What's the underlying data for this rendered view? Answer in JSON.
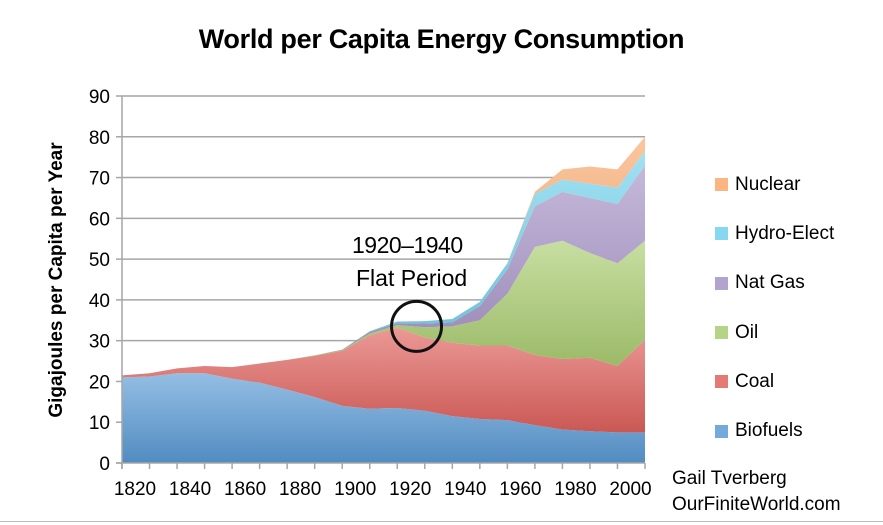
{
  "chart_data": {
    "type": "area",
    "stacked": true,
    "title": "World per Capita Energy Consumption",
    "xlabel": "",
    "ylabel": "Gigajoules per Capita per Year",
    "ylim": [
      0,
      90
    ],
    "xlim": [
      1820,
      2010
    ],
    "yticks": [
      0,
      10,
      20,
      30,
      40,
      50,
      60,
      70,
      80,
      90
    ],
    "xtick_labels": [
      "1820",
      "1840",
      "1860",
      "1880",
      "1900",
      "1920",
      "1940",
      "1960",
      "1980",
      "2000"
    ],
    "grid": "horizontal",
    "legend_position": "right",
    "x": [
      1820,
      1830,
      1840,
      1850,
      1860,
      1870,
      1880,
      1890,
      1900,
      1910,
      1920,
      1930,
      1940,
      1950,
      1960,
      1970,
      1980,
      1990,
      2000,
      2010
    ],
    "series": [
      {
        "name": "Biofuels",
        "color": "#5b9bd5",
        "values": [
          21.0,
          21.2,
          22.0,
          22.0,
          20.7,
          19.7,
          18.0,
          16.2,
          14.0,
          13.3,
          13.5,
          12.8,
          11.5,
          10.8,
          10.5,
          9.3,
          8.2,
          7.8,
          7.5,
          7.5
        ]
      },
      {
        "name": "Coal",
        "color": "#e0625d",
        "values": [
          0.5,
          0.8,
          1.2,
          1.8,
          2.8,
          4.7,
          7.3,
          10.1,
          13.5,
          18.0,
          19.7,
          18.0,
          18.0,
          18.0,
          18.3,
          17.2,
          17.3,
          18.0,
          16.3,
          22.8
        ]
      },
      {
        "name": "Oil",
        "color": "#a9cc6f",
        "values": [
          0,
          0,
          0,
          0,
          0,
          0,
          0,
          0.1,
          0.2,
          0.5,
          0.6,
          2.5,
          4.0,
          6.2,
          12.7,
          26.5,
          29.0,
          25.7,
          25.2,
          24.2
        ]
      },
      {
        "name": "Nat Gas",
        "color": "#a593c6",
        "values": [
          0,
          0,
          0,
          0,
          0,
          0,
          0,
          0,
          0.1,
          0.4,
          0.5,
          0.9,
          1.0,
          3.5,
          6.0,
          10.0,
          12.0,
          13.5,
          14.5,
          18.5
        ]
      },
      {
        "name": "Hydro-Elect",
        "color": "#6fd1ec",
        "values": [
          0,
          0,
          0,
          0,
          0,
          0,
          0,
          0,
          0,
          0.1,
          0.4,
          0.6,
          0.8,
          1.0,
          1.5,
          3.0,
          3.0,
          3.5,
          4.0,
          3.5
        ]
      },
      {
        "name": "Nuclear",
        "color": "#f9a86a",
        "values": [
          0,
          0,
          0,
          0,
          0,
          0,
          0,
          0,
          0,
          0,
          0,
          0,
          0,
          0,
          0,
          0.5,
          2.5,
          4.2,
          4.5,
          3.5
        ]
      }
    ],
    "annotations": [
      {
        "text_line1": "1920–1940",
        "text_line2": "Flat Period",
        "circle_center_year": 1927,
        "circle_center_value": 33.5
      }
    ]
  },
  "credits": {
    "author": "Gail Tverberg",
    "site": "OurFiniteWorld.com"
  }
}
